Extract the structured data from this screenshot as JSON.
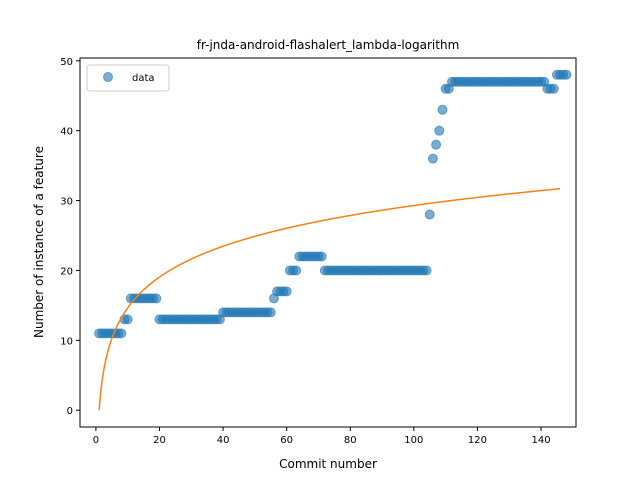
{
  "chart_data": {
    "type": "scatter",
    "title": "fr-jnda-android-flashalert_lambda-logarithm",
    "xlabel": "Commit number",
    "ylabel": "Number of instance of a feature",
    "xlim": [
      -5,
      151
    ],
    "ylim": [
      -2.4,
      50.4
    ],
    "xticks": [
      0,
      20,
      40,
      60,
      80,
      100,
      120,
      140
    ],
    "yticks": [
      0,
      10,
      20,
      30,
      40,
      50
    ],
    "grid": false,
    "legend": {
      "placement": "top-left",
      "entries": [
        "data"
      ]
    },
    "colors": {
      "data": "#1f77b4",
      "fit": "#ff7f0e"
    },
    "series": [
      {
        "name": "data",
        "kind": "scatter",
        "y": [
          11,
          11,
          11,
          11,
          11,
          11,
          11,
          11,
          13,
          13,
          16,
          16,
          16,
          16,
          16,
          16,
          16,
          16,
          16,
          13,
          13,
          13,
          13,
          13,
          13,
          13,
          13,
          13,
          13,
          13,
          13,
          13,
          13,
          13,
          13,
          13,
          13,
          13,
          13,
          14,
          14,
          14,
          14,
          14,
          14,
          14,
          14,
          14,
          14,
          14,
          14,
          14,
          14,
          14,
          14,
          16,
          17,
          17,
          17,
          17,
          20,
          20,
          20,
          22,
          22,
          22,
          22,
          22,
          22,
          22,
          22,
          20,
          20,
          20,
          20,
          20,
          20,
          20,
          20,
          20,
          20,
          20,
          20,
          20,
          20,
          20,
          20,
          20,
          20,
          20,
          20,
          20,
          20,
          20,
          20,
          20,
          20,
          20,
          20,
          20,
          20,
          20,
          20,
          20,
          28,
          36,
          38,
          40,
          43,
          46,
          46,
          47,
          47,
          47,
          47,
          47,
          47,
          47,
          47,
          47,
          47,
          47,
          47,
          47,
          47,
          47,
          47,
          47,
          47,
          47,
          47,
          47,
          47,
          47,
          47,
          47,
          47,
          47,
          47,
          47,
          47,
          46,
          46,
          46,
          48,
          48,
          48,
          48
        ]
      },
      {
        "kind": "line",
        "x_range": [
          1,
          146
        ],
        "fit": {
          "a": 6.36,
          "b": 0.0,
          "form": "a*ln(x)+b"
        }
      }
    ]
  }
}
